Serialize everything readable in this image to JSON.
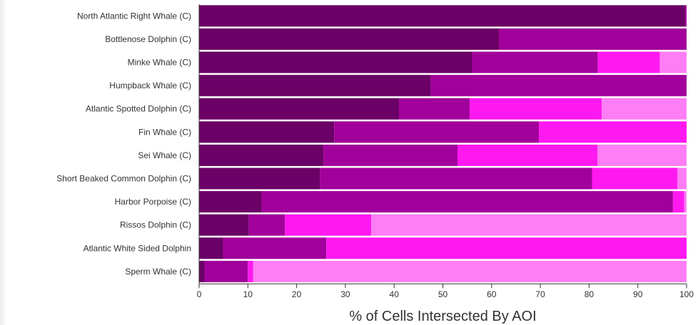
{
  "chart_data": {
    "type": "bar",
    "orientation": "horizontal",
    "stacked": true,
    "title": "",
    "xlabel": "% of Cells Intersected By AOI",
    "ylabel": "",
    "xlim": [
      0,
      100
    ],
    "xticks": [
      "0",
      "10",
      "20",
      "30",
      "40",
      "50",
      "60",
      "70",
      "80",
      "90",
      "100"
    ],
    "categories": [
      "North Atlantic Right Whale (C)",
      "Bottlenose Dolphin (C)",
      "Minke Whale (C)",
      "Humpback Whale (C)",
      "Atlantic Spotted Dolphin (C)",
      "Fin Whale (C)",
      "Sei Whale (C)",
      "Short Beaked Common Dolphin (C)",
      "Harbor Porpoise (C)",
      "Rissos Dolphin (C)",
      "Atlantic White Sided Dolphin",
      "Sperm Whale (C)"
    ],
    "series": [
      {
        "color": "#6b0066",
        "values": [
          99.7,
          61.5,
          56,
          47.5,
          41,
          27.7,
          25.5,
          24.8,
          12.8,
          10.2,
          4.9,
          1.1
        ]
      },
      {
        "color": "#a1009b",
        "values": [
          0.3,
          38.5,
          25.8,
          52.5,
          14.5,
          42,
          27.5,
          55.8,
          84.4,
          7.4,
          21.2,
          8.9
        ]
      },
      {
        "color": "#ff19f0",
        "values": [
          0,
          0,
          12.7,
          0,
          27.1,
          30.3,
          28.7,
          17.5,
          2.3,
          17.7,
          73.9,
          1.1
        ]
      },
      {
        "color": "#ff7df5",
        "values": [
          0,
          0,
          5.5,
          0,
          17.4,
          0,
          18.3,
          1.9,
          0.5,
          64.7,
          0,
          88.9
        ]
      }
    ],
    "grid": false,
    "legend": "none"
  }
}
